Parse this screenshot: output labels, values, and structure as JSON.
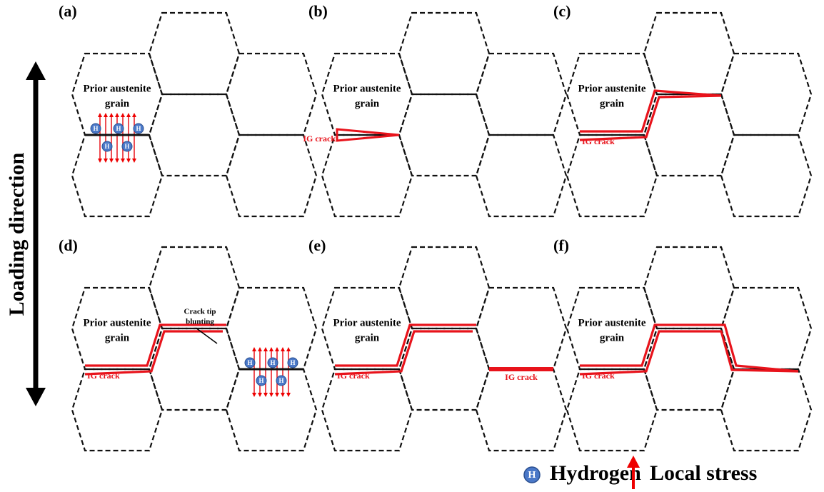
{
  "loading_direction": "Loading direction",
  "panels": [
    {
      "label": "(a)",
      "grain": [
        "Prior austenite",
        "grain"
      ]
    },
    {
      "label": "(b)",
      "grain": [
        "Prior austenite",
        "grain"
      ],
      "cracks": [
        "IG crack"
      ]
    },
    {
      "label": "(c)",
      "grain": [
        "Prior austenite",
        "grain"
      ],
      "cracks": [
        "IG crack"
      ]
    },
    {
      "label": "(d)",
      "grain": [
        "Prior austenite",
        "grain"
      ],
      "cracks": [
        "IG crack"
      ],
      "annotation": [
        "Crack tip",
        "blunting"
      ]
    },
    {
      "label": "(e)",
      "grain": [
        "Prior austenite",
        "grain"
      ],
      "cracks": [
        "IG crack",
        "IG crack"
      ]
    },
    {
      "label": "(f)",
      "grain": [
        "Prior austenite",
        "grain"
      ],
      "cracks": [
        "IG crack"
      ]
    }
  ],
  "legend": {
    "hydrogen_symbol": "H",
    "hydrogen": "Hydrogen",
    "stress": "Local stress"
  }
}
